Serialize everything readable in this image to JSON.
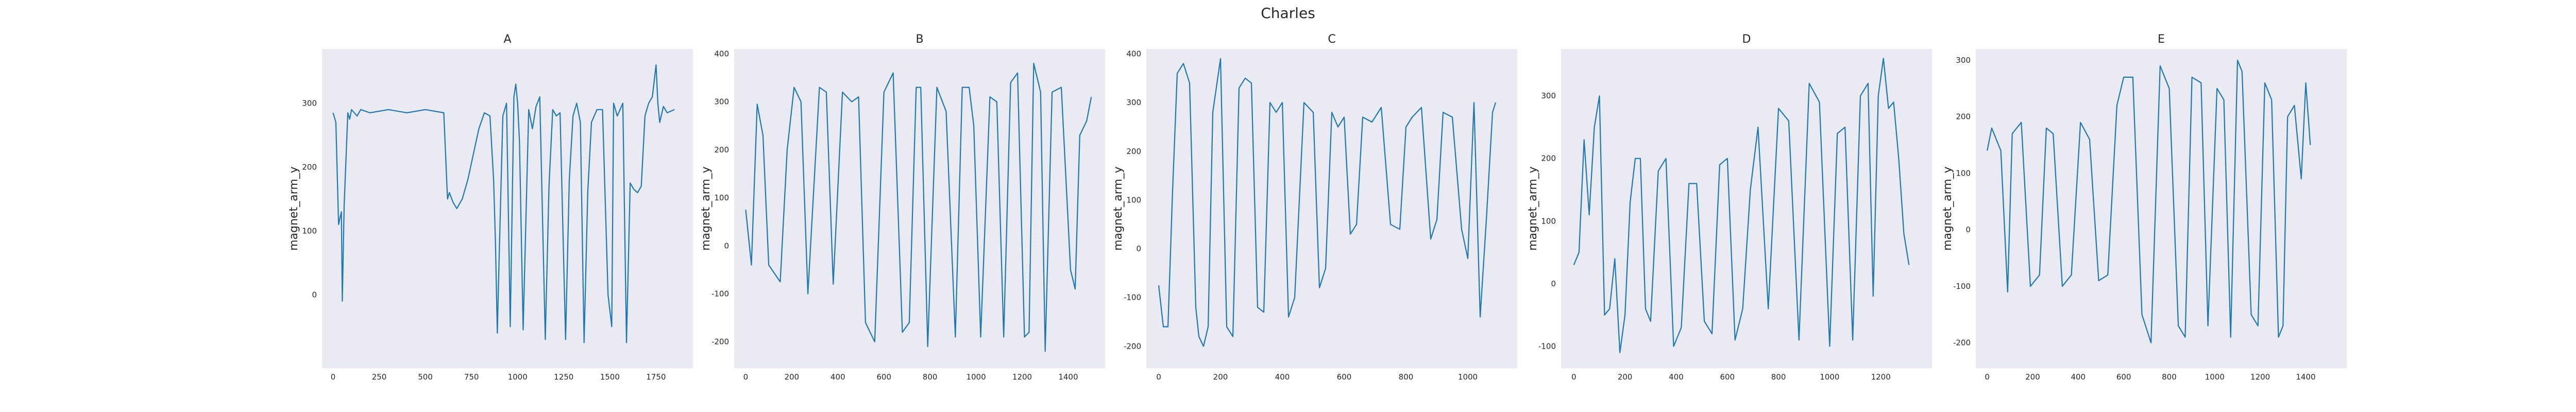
{
  "figure": {
    "suptitle": "Charles",
    "colors": {
      "background": "#EAEAF2",
      "line": "#1f77b4",
      "text": "#262626"
    }
  },
  "chart_data": [
    {
      "type": "line",
      "title": "A",
      "ylabel": "magnet_arm_y",
      "xlabel": "",
      "grid": false,
      "xticks": [
        0,
        250,
        500,
        750,
        1000,
        1250,
        1500,
        1750
      ],
      "yticks": [
        0,
        100,
        200,
        300
      ],
      "xlim": [
        -60,
        1950
      ],
      "ylim": [
        -115,
        385
      ],
      "series": [
        {
          "x": [
            0,
            15,
            30,
            45,
            50,
            60,
            80,
            90,
            100,
            130,
            150,
            200,
            300,
            400,
            500,
            600,
            620,
            630,
            650,
            670,
            700,
            730,
            760,
            790,
            820,
            850,
            870,
            880,
            890,
            900,
            920,
            940,
            960,
            980,
            990,
            1000,
            1010,
            1030,
            1060,
            1080,
            1100,
            1120,
            1150,
            1170,
            1190,
            1210,
            1230,
            1260,
            1280,
            1300,
            1320,
            1340,
            1360,
            1380,
            1400,
            1430,
            1460,
            1490,
            1510,
            1520,
            1540,
            1570,
            1590,
            1610,
            1630,
            1650,
            1670,
            1690,
            1700,
            1710,
            1730,
            1750,
            1760,
            1770,
            1790,
            1810,
            1850
          ],
          "y": [
            285,
            270,
            110,
            130,
            -10,
            140,
            285,
            275,
            290,
            280,
            290,
            285,
            290,
            285,
            290,
            285,
            150,
            160,
            145,
            135,
            150,
            180,
            220,
            260,
            285,
            280,
            180,
            80,
            -60,
            60,
            280,
            300,
            -50,
            310,
            330,
            300,
            240,
            -55,
            290,
            260,
            295,
            310,
            -70,
            170,
            290,
            280,
            285,
            -70,
            180,
            280,
            300,
            270,
            -75,
            160,
            270,
            290,
            290,
            0,
            -50,
            300,
            280,
            300,
            -75,
            175,
            165,
            160,
            170,
            280,
            290,
            300,
            310,
            360,
            300,
            270,
            295,
            285,
            290
          ]
        }
      ]
    },
    {
      "type": "line",
      "title": "B",
      "ylabel": "magnet_arm_y",
      "xlabel": "",
      "grid": false,
      "xticks": [
        0,
        200,
        400,
        600,
        800,
        1000,
        1200,
        1400
      ],
      "yticks": [
        -200,
        -100,
        0,
        100,
        200,
        300,
        400
      ],
      "xlim": [
        -50,
        1560
      ],
      "ylim": [
        -255,
        410
      ],
      "series": [
        {
          "x": [
            0,
            25,
            50,
            75,
            100,
            150,
            180,
            210,
            240,
            270,
            320,
            350,
            380,
            420,
            460,
            490,
            520,
            540,
            560,
            600,
            640,
            680,
            710,
            740,
            760,
            790,
            830,
            870,
            910,
            940,
            970,
            990,
            1020,
            1060,
            1090,
            1120,
            1150,
            1180,
            1210,
            1230,
            1250,
            1280,
            1300,
            1330,
            1370,
            1410,
            1430,
            1450,
            1480,
            1500
          ],
          "y": [
            75,
            -40,
            295,
            230,
            -40,
            -75,
            200,
            330,
            300,
            -100,
            330,
            320,
            -80,
            320,
            300,
            310,
            -160,
            -180,
            -200,
            320,
            360,
            -180,
            -160,
            330,
            330,
            -210,
            330,
            280,
            -190,
            330,
            330,
            250,
            -190,
            310,
            300,
            -190,
            340,
            360,
            -190,
            -180,
            380,
            320,
            -220,
            320,
            330,
            -50,
            -90,
            230,
            260,
            310
          ]
        }
      ]
    },
    {
      "type": "line",
      "title": "C",
      "ylabel": "magnet_arm_y",
      "xlabel": "",
      "grid": false,
      "xticks": [
        0,
        200,
        400,
        600,
        800,
        1000
      ],
      "yticks": [
        -200,
        -100,
        0,
        100,
        200,
        300,
        400
      ],
      "xlim": [
        -40,
        1160
      ],
      "ylim": [
        -245,
        410
      ],
      "series": [
        {
          "x": [
            0,
            15,
            30,
            45,
            60,
            80,
            100,
            120,
            130,
            145,
            160,
            175,
            200,
            220,
            240,
            260,
            280,
            300,
            320,
            340,
            360,
            380,
            400,
            420,
            440,
            470,
            500,
            520,
            540,
            560,
            580,
            600,
            620,
            640,
            660,
            690,
            720,
            750,
            780,
            800,
            820,
            850,
            880,
            900,
            920,
            950,
            980,
            1000,
            1020,
            1040,
            1060,
            1080,
            1090
          ],
          "y": [
            -75,
            -160,
            -160,
            120,
            360,
            380,
            340,
            -120,
            -180,
            -200,
            -160,
            280,
            390,
            -160,
            -180,
            330,
            350,
            340,
            -120,
            -130,
            300,
            280,
            300,
            -140,
            -100,
            300,
            280,
            -80,
            -40,
            280,
            250,
            270,
            30,
            50,
            270,
            260,
            290,
            50,
            40,
            250,
            270,
            290,
            20,
            60,
            280,
            270,
            40,
            -20,
            300,
            -140,
            60,
            280,
            300
          ]
        }
      ]
    },
    {
      "type": "line",
      "title": "D",
      "ylabel": "magnet_arm_y",
      "xlabel": "",
      "grid": false,
      "xticks": [
        0,
        200,
        400,
        600,
        800,
        1000,
        1200
      ],
      "yticks": [
        -100,
        0,
        100,
        200,
        300
      ],
      "xlim": [
        -50,
        1400
      ],
      "ylim": [
        -135,
        375
      ],
      "series": [
        {
          "x": [
            0,
            20,
            40,
            60,
            80,
            100,
            120,
            140,
            160,
            180,
            200,
            220,
            240,
            260,
            280,
            300,
            330,
            360,
            390,
            420,
            450,
            480,
            510,
            540,
            570,
            600,
            630,
            660,
            690,
            720,
            760,
            800,
            840,
            880,
            920,
            960,
            1000,
            1030,
            1060,
            1090,
            1120,
            1150,
            1170,
            1190,
            1210,
            1230,
            1250,
            1270,
            1290,
            1310
          ],
          "y": [
            30,
            50,
            230,
            110,
            250,
            300,
            -50,
            -40,
            40,
            -110,
            -50,
            130,
            200,
            200,
            -40,
            -60,
            180,
            200,
            -100,
            -70,
            160,
            160,
            -60,
            -80,
            190,
            200,
            -90,
            -40,
            150,
            250,
            -40,
            280,
            260,
            -90,
            320,
            290,
            -100,
            240,
            250,
            -90,
            300,
            320,
            -20,
            300,
            360,
            280,
            290,
            200,
            80,
            30
          ]
        }
      ]
    },
    {
      "type": "line",
      "title": "E",
      "ylabel": "magnet_arm_y",
      "xlabel": "",
      "grid": false,
      "xticks": [
        0,
        200,
        400,
        600,
        800,
        1000,
        1200,
        1400
      ],
      "yticks": [
        -200,
        -100,
        0,
        100,
        200,
        300
      ],
      "xlim": [
        -50,
        1580
      ],
      "ylim": [
        -245,
        320
      ],
      "series": [
        {
          "x": [
            0,
            20,
            60,
            90,
            110,
            150,
            190,
            230,
            260,
            290,
            330,
            370,
            410,
            450,
            490,
            530,
            570,
            600,
            640,
            680,
            720,
            760,
            800,
            840,
            870,
            900,
            940,
            970,
            1010,
            1040,
            1070,
            1100,
            1120,
            1160,
            1190,
            1220,
            1250,
            1280,
            1300,
            1320,
            1350,
            1380,
            1400,
            1420
          ],
          "y": [
            140,
            180,
            140,
            -110,
            170,
            190,
            -100,
            -80,
            180,
            170,
            -100,
            -80,
            190,
            160,
            -90,
            -80,
            220,
            270,
            270,
            -150,
            -200,
            290,
            250,
            -170,
            -190,
            270,
            260,
            -170,
            250,
            230,
            -190,
            300,
            280,
            -150,
            -170,
            260,
            230,
            -190,
            -170,
            200,
            220,
            90,
            260,
            150
          ]
        }
      ]
    }
  ]
}
